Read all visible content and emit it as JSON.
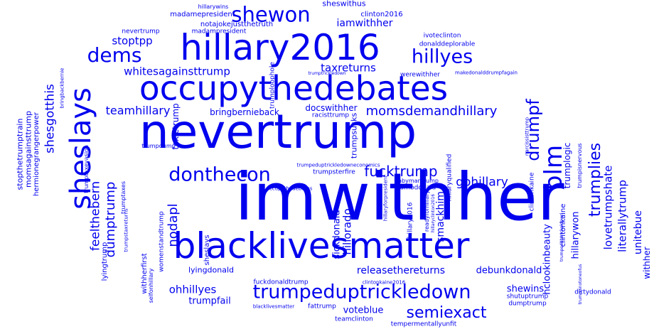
{
  "color": "#0000ee",
  "words": [
    "imwithher",
    "nevertrump",
    "blacklivesmatter",
    "occupythedebates",
    "hillary2016",
    "sheslays",
    "shewon",
    "trumpeduptrickledown",
    "donthecon",
    "dems",
    "hillyes",
    "blm",
    "drumpf",
    "semiexact",
    "trumplies",
    "fucktrump",
    "momsdemandhillary",
    "teamhillary",
    "whitesagainsttrump",
    "gohillary",
    "shesgotthis",
    "feelthebern",
    "dumptrump",
    "lovetrumpshate",
    "literallytrump",
    "nodapl",
    "hillorado",
    "taxreturns",
    "ohhillyes",
    "trumpfail",
    "unitebue",
    "withher",
    "stoptpp",
    "iamwithher",
    "bringbernieback",
    "docswithher",
    "releasethereturns",
    "debunkdonald",
    "trumplogic",
    "hillarywon",
    "hclookinbeauty",
    "smackhim",
    "sickdonald",
    "lyingdonald",
    "shewins",
    "voteblue",
    "fuckdonaldtrump",
    "toxictrump",
    "madamepresident",
    "notajokejustthetruth",
    "sheswithus",
    "clinton2016",
    "hillarywins",
    "nevertrump",
    "madampresident",
    "ivoteclinton",
    "donalddeplorable",
    "trumploophole",
    "werewithher",
    "makedonalddrumpfagain",
    "racisttrump",
    "trumpsucks",
    "trumpsterfire",
    "dumbdonald",
    "babymantrump",
    "hillaryqualified",
    "clintonkaine",
    "trumpisnervous",
    "narcissisttrump",
    "hillaryforpresident",
    "hillary2016",
    "readyforhillary",
    "hillaryclinton2016",
    "clintonkaine2016",
    "shutuptrump",
    "dumptrump",
    "teamclinton",
    "fattrump",
    "blacklivesmatter",
    "tempermentallyunfit",
    "lyingtrump",
    "withherfirst",
    "womenstandtrump",
    "trumptaxes",
    "sheslays",
    "stopthetrumptrain",
    "momsagainsttrump",
    "hermionegrangerpower",
    "trumptaxevasion",
    "bringbackbernie",
    "trumpdump",
    "occupythedebates",
    "trumpeduptrickledowneconomics",
    "selfonhillary",
    "trumpstaxreturns",
    "trumptrickledown",
    "dirtydonald",
    "trumpisnotoneofus",
    "trumpeduptrickeldown",
    "clintonkaine"
  ]
}
